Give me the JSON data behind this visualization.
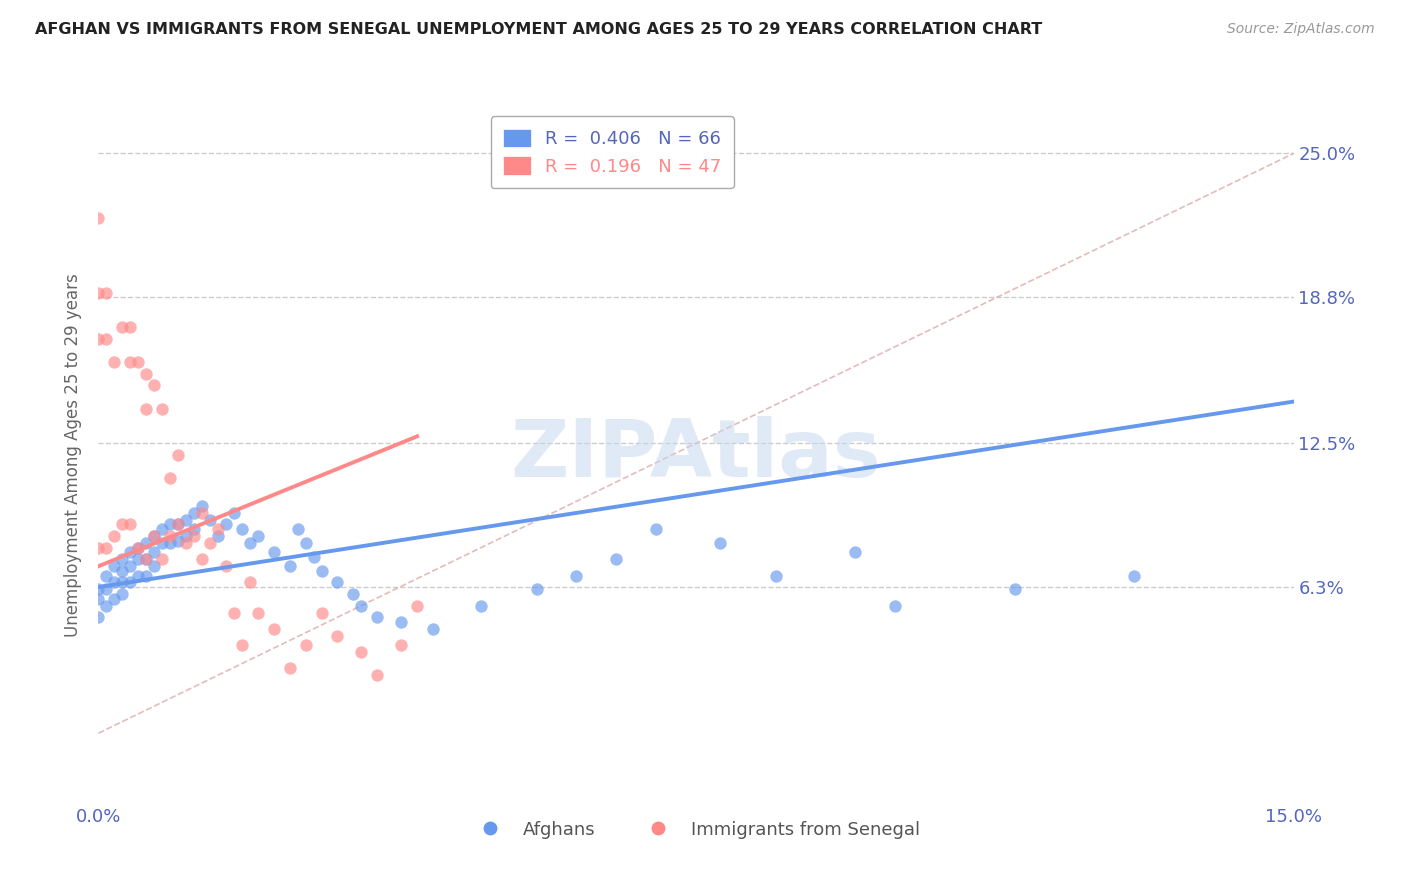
{
  "title": "AFGHAN VS IMMIGRANTS FROM SENEGAL UNEMPLOYMENT AMONG AGES 25 TO 29 YEARS CORRELATION CHART",
  "source": "Source: ZipAtlas.com",
  "ylabel": "Unemployment Among Ages 25 to 29 years",
  "xlim": [
    0.0,
    0.15
  ],
  "ylim": [
    -0.03,
    0.27
  ],
  "ytick_labels": [
    "25.0%",
    "18.8%",
    "12.5%",
    "6.3%"
  ],
  "ytick_values": [
    0.25,
    0.188,
    0.125,
    0.063
  ],
  "xtick_vals": [
    0.0,
    0.15
  ],
  "xtick_labels": [
    "0.0%",
    "15.0%"
  ],
  "blue_color": "#6699EE",
  "pink_color": "#FF8888",
  "blue_label": "Afghans",
  "pink_label": "Immigrants from Senegal",
  "blue_R": "0.406",
  "blue_N": "66",
  "pink_R": "0.196",
  "pink_N": "47",
  "watermark": "ZIPAtlas",
  "axis_color": "#5566BB",
  "blue_scatter_x": [
    0.0,
    0.0,
    0.0,
    0.001,
    0.001,
    0.001,
    0.002,
    0.002,
    0.002,
    0.003,
    0.003,
    0.003,
    0.003,
    0.004,
    0.004,
    0.004,
    0.005,
    0.005,
    0.005,
    0.006,
    0.006,
    0.006,
    0.007,
    0.007,
    0.007,
    0.008,
    0.008,
    0.009,
    0.009,
    0.01,
    0.01,
    0.011,
    0.011,
    0.012,
    0.012,
    0.013,
    0.014,
    0.015,
    0.016,
    0.017,
    0.018,
    0.019,
    0.02,
    0.022,
    0.024,
    0.025,
    0.026,
    0.027,
    0.028,
    0.03,
    0.032,
    0.033,
    0.035,
    0.038,
    0.042,
    0.048,
    0.055,
    0.06,
    0.065,
    0.07,
    0.078,
    0.085,
    0.095,
    0.1,
    0.115,
    0.13
  ],
  "blue_scatter_y": [
    0.062,
    0.058,
    0.05,
    0.068,
    0.062,
    0.055,
    0.072,
    0.065,
    0.058,
    0.075,
    0.07,
    0.065,
    0.06,
    0.078,
    0.072,
    0.065,
    0.08,
    0.075,
    0.068,
    0.082,
    0.075,
    0.068,
    0.085,
    0.078,
    0.072,
    0.088,
    0.082,
    0.09,
    0.082,
    0.09,
    0.083,
    0.092,
    0.085,
    0.095,
    0.088,
    0.098,
    0.092,
    0.085,
    0.09,
    0.095,
    0.088,
    0.082,
    0.085,
    0.078,
    0.072,
    0.088,
    0.082,
    0.076,
    0.07,
    0.065,
    0.06,
    0.055,
    0.05,
    0.048,
    0.045,
    0.055,
    0.062,
    0.068,
    0.075,
    0.088,
    0.082,
    0.068,
    0.078,
    0.055,
    0.062,
    0.068
  ],
  "pink_scatter_x": [
    0.0,
    0.0,
    0.0,
    0.0,
    0.001,
    0.001,
    0.001,
    0.002,
    0.002,
    0.003,
    0.003,
    0.004,
    0.004,
    0.004,
    0.005,
    0.005,
    0.006,
    0.006,
    0.006,
    0.007,
    0.007,
    0.008,
    0.008,
    0.009,
    0.009,
    0.01,
    0.01,
    0.011,
    0.012,
    0.013,
    0.013,
    0.014,
    0.015,
    0.016,
    0.017,
    0.018,
    0.019,
    0.02,
    0.022,
    0.024,
    0.026,
    0.028,
    0.03,
    0.033,
    0.035,
    0.038,
    0.04
  ],
  "pink_scatter_y": [
    0.222,
    0.19,
    0.17,
    0.08,
    0.19,
    0.17,
    0.08,
    0.16,
    0.085,
    0.175,
    0.09,
    0.175,
    0.16,
    0.09,
    0.16,
    0.08,
    0.155,
    0.14,
    0.075,
    0.15,
    0.085,
    0.14,
    0.075,
    0.11,
    0.085,
    0.12,
    0.09,
    0.082,
    0.085,
    0.095,
    0.075,
    0.082,
    0.088,
    0.072,
    0.052,
    0.038,
    0.065,
    0.052,
    0.045,
    0.028,
    0.038,
    0.052,
    0.042,
    0.035,
    0.025,
    0.038,
    0.055
  ],
  "blue_trend_x": [
    0.0,
    0.15
  ],
  "blue_trend_y": [
    0.063,
    0.143
  ],
  "pink_trend_x": [
    0.0,
    0.04
  ],
  "pink_trend_y": [
    0.072,
    0.128
  ]
}
